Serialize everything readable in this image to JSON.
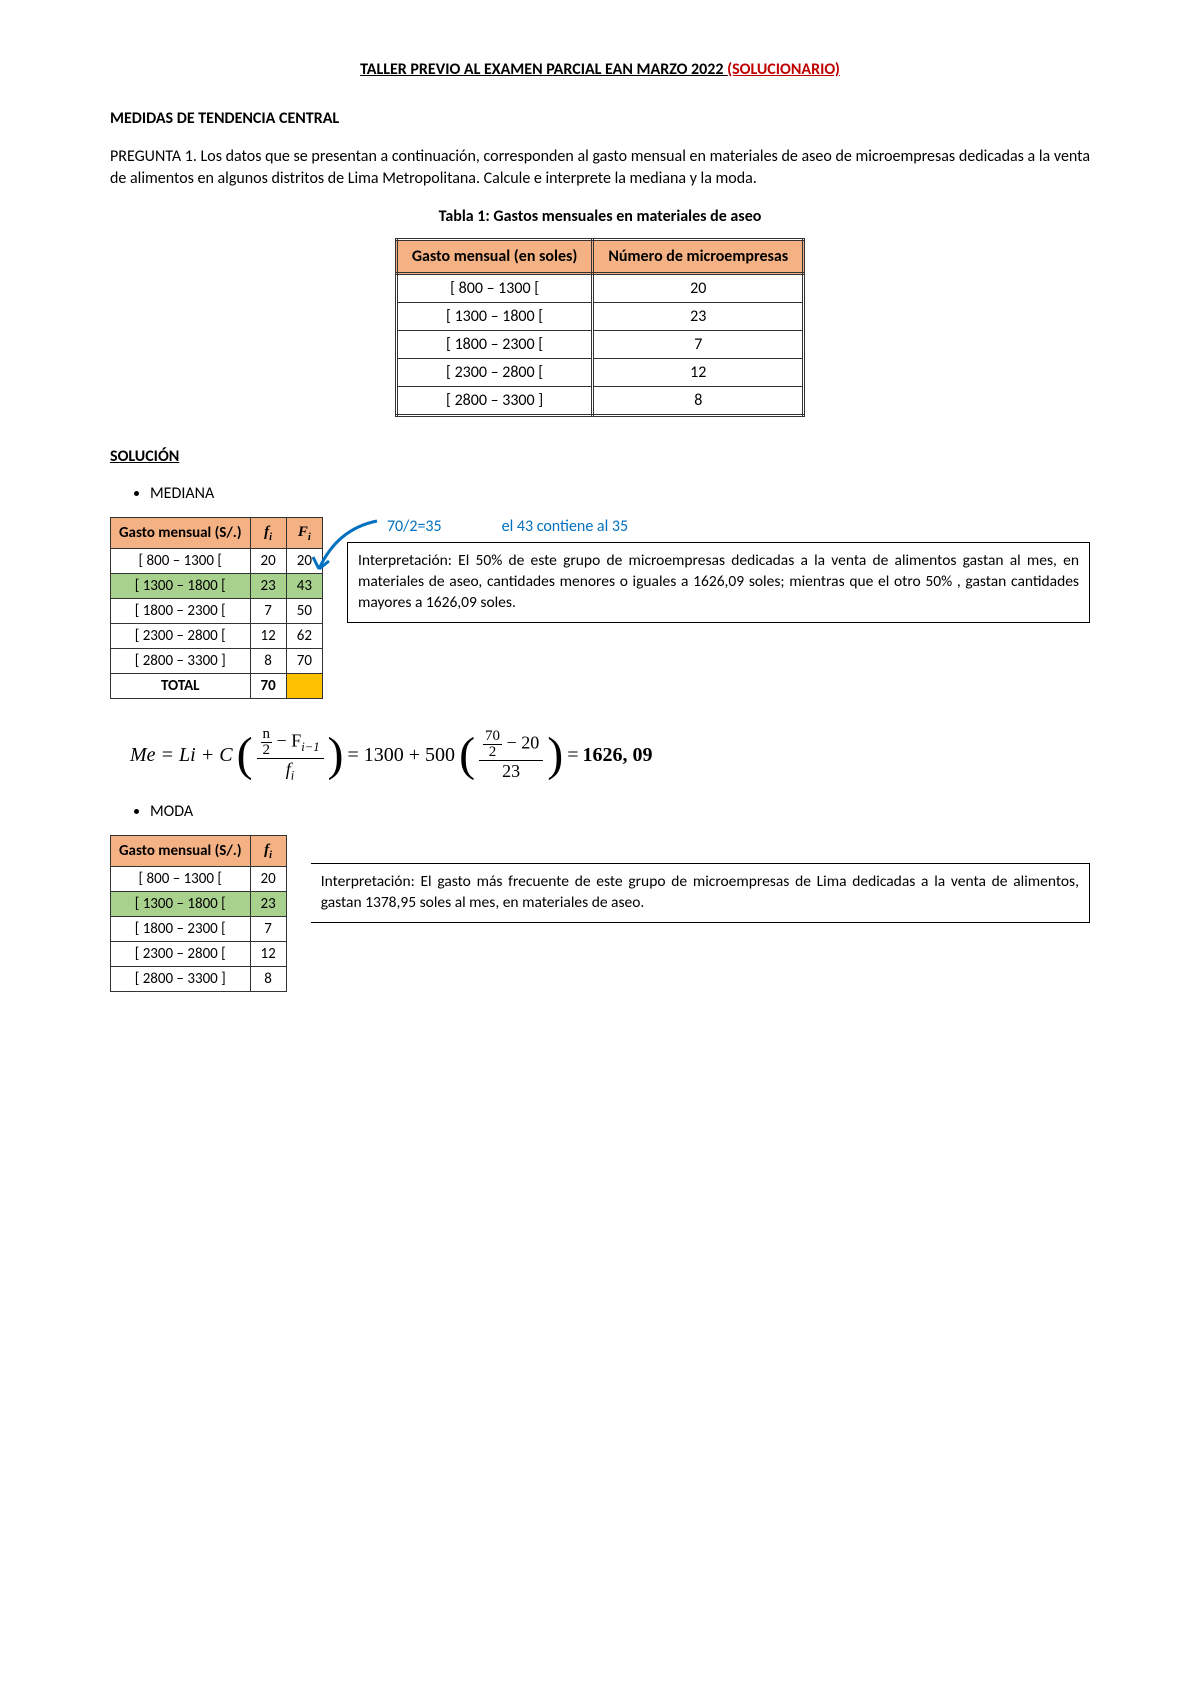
{
  "title_main": "TALLER PREVIO AL EXAMEN PARCIAL EAN MARZO 2022 ",
  "title_red": "(SOLUCIONARIO)",
  "section_head": "MEDIDAS DE TENDENCIA CENTRAL",
  "question_text": "PREGUNTA 1. Los datos que se presentan a continuación, corresponden al gasto mensual en materiales de aseo de microempresas dedicadas a la venta de alimentos en algunos distritos de Lima Metropolitana. Calcule e interprete la mediana y la moda.",
  "table1_caption": "Tabla 1: Gastos mensuales en materiales de aseo",
  "table1": {
    "headers": [
      "Gasto mensual (en soles)",
      "Número de microempresas"
    ],
    "rows": [
      [
        "[ 800 – 1300 [",
        "20"
      ],
      [
        "[ 1300 – 1800 [",
        "23"
      ],
      [
        "[ 1800 – 2300 [",
        "7"
      ],
      [
        "[ 2300 – 2800 [",
        "12"
      ],
      [
        "[ 2800 – 3300 ]",
        "8"
      ]
    ]
  },
  "solucion_label": "SOLUCIÓN",
  "mediana_label": "MEDIANA",
  "moda_label": "MODA",
  "table2": {
    "headers": [
      "Gasto mensual (S/.)",
      "f",
      "F"
    ],
    "sub": "i",
    "rows": [
      {
        "c": [
          "[ 800 – 1300 [",
          "20",
          "20"
        ],
        "hl": false
      },
      {
        "c": [
          "[ 1300 – 1800 [",
          "23",
          "43"
        ],
        "hl": true
      },
      {
        "c": [
          "[ 1800 – 2300 [",
          "7",
          "50"
        ],
        "hl": false
      },
      {
        "c": [
          "[ 2300 – 2800 [",
          "12",
          "62"
        ],
        "hl": false
      },
      {
        "c": [
          "[ 2800 – 3300 ]",
          "8",
          "70"
        ],
        "hl": false
      }
    ],
    "total_label": "TOTAL",
    "total_val": "70"
  },
  "annot1": "70/2=35",
  "annot2": "el 43 contiene al 35",
  "interp_mediana": "Interpretación: El 50% de este grupo de microempresas dedicadas a la venta de alimentos gastan al mes, en materiales de aseo, cantidades menores o iguales a 1626,09 soles; mientras que el otro 50% , gastan cantidades mayores a 1626,09 soles.",
  "formula": {
    "lhs": "Me = Li + C",
    "num_inner_n": "n",
    "num_inner_2": "2",
    "num_minus": " − F",
    "num_sub": "i−1",
    "den": "f",
    "den_sub": "i",
    "eq1": " = 1300 + 500",
    "num2_top_n": "70",
    "num2_top_2": "2",
    "num2_minus": " − 20",
    "den2": "23",
    "eq2": " = ",
    "result": "1626, 09"
  },
  "table3": {
    "headers": [
      "Gasto mensual (S/.)",
      "f"
    ],
    "sub": "i",
    "rows": [
      {
        "c": [
          "[ 800 – 1300 [",
          "20"
        ],
        "hl": false
      },
      {
        "c": [
          "[ 1300 – 1800 [",
          "23"
        ],
        "hl": true
      },
      {
        "c": [
          "[ 1800 – 2300 [",
          "7"
        ],
        "hl": false
      },
      {
        "c": [
          "[ 2300 – 2800 [",
          "12"
        ],
        "hl": false
      },
      {
        "c": [
          "[ 2800 – 3300 ]",
          "8"
        ],
        "hl": false
      }
    ]
  },
  "interp_moda": "Interpretación: El gasto más frecuente de este grupo de microempresas de Lima dedicadas a la venta de alimentos, gastan 1378,95 soles al mes, en materiales de aseo.",
  "colors": {
    "header_bg": "#f4b183",
    "highlight_bg": "#a9d18e",
    "gold": "#ffc000",
    "red": "#c00000",
    "blue": "#0070c0"
  }
}
